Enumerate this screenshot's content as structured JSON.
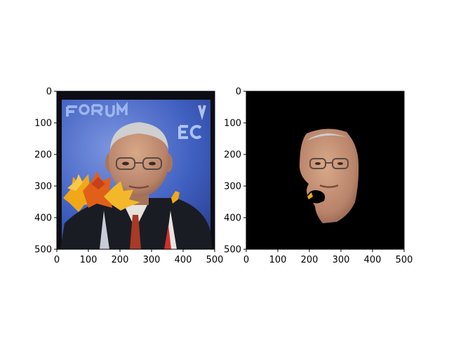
{
  "chart_data": [
    {
      "type": "image",
      "content": "photo of a man's face with autumn maple leaves overlaid",
      "xlim": [
        0,
        500
      ],
      "ylim": [
        500,
        0
      ],
      "xticks": [
        "0",
        "100",
        "200",
        "300",
        "400",
        "500"
      ],
      "yticks": [
        "0",
        "100",
        "200",
        "300",
        "400",
        "500"
      ]
    },
    {
      "type": "image",
      "content": "segmented face on black background",
      "xlim": [
        0,
        500
      ],
      "ylim": [
        500,
        0
      ],
      "xticks": [
        "0",
        "100",
        "200",
        "300",
        "400",
        "500"
      ],
      "yticks": [
        "0",
        "100",
        "200",
        "300",
        "400",
        "500"
      ]
    }
  ]
}
